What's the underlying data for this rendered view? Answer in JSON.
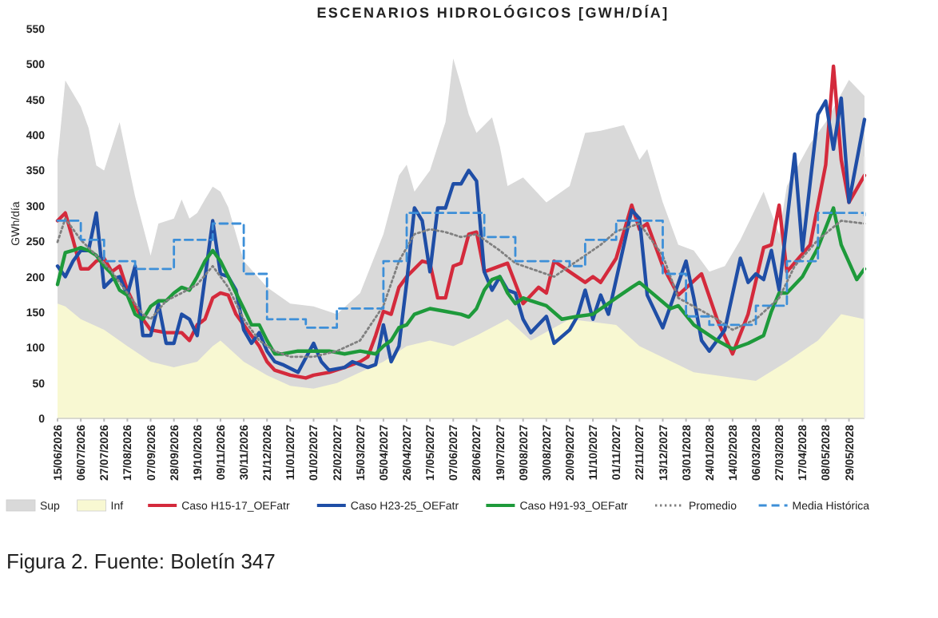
{
  "chart_data": {
    "type": "line",
    "title": "ESCENARIOS HIDROLÓGICOS [GWH/DÍA]",
    "ylabel": "GWh/día",
    "ylim": [
      0,
      550
    ],
    "yticks": [
      0,
      50,
      100,
      150,
      200,
      250,
      300,
      350,
      400,
      450,
      500,
      550
    ],
    "xlim": [
      "2026-06-15",
      "2028-06-12"
    ],
    "xticks": [
      {
        "value": "2026-06-15",
        "label": "15/06/2026"
      },
      {
        "value": "2026-07-06",
        "label": "06/07/2026"
      },
      {
        "value": "2026-07-27",
        "label": "27/07/2026"
      },
      {
        "value": "2026-08-17",
        "label": "17/08/2026"
      },
      {
        "value": "2026-09-07",
        "label": "07/09/2026"
      },
      {
        "value": "2026-09-28",
        "label": "28/09/2026"
      },
      {
        "value": "2026-10-19",
        "label": "19/10/2026"
      },
      {
        "value": "2026-11-09",
        "label": "09/11/2026"
      },
      {
        "value": "2026-11-30",
        "label": "30/11/2026"
      },
      {
        "value": "2026-12-21",
        "label": "21/12/2026"
      },
      {
        "value": "2027-01-11",
        "label": "11/01/2027"
      },
      {
        "value": "2027-02-01",
        "label": "01/02/2027"
      },
      {
        "value": "2027-02-22",
        "label": "22/02/2027"
      },
      {
        "value": "2027-03-15",
        "label": "15/03/2027"
      },
      {
        "value": "2027-04-05",
        "label": "05/04/2027"
      },
      {
        "value": "2027-04-26",
        "label": "26/04/2027"
      },
      {
        "value": "2027-05-17",
        "label": "17/05/2027"
      },
      {
        "value": "2027-06-07",
        "label": "07/06/2027"
      },
      {
        "value": "2027-06-28",
        "label": "28/06/2027"
      },
      {
        "value": "2027-07-19",
        "label": "19/07/2027"
      },
      {
        "value": "2027-08-09",
        "label": "09/08/2027"
      },
      {
        "value": "2027-08-30",
        "label": "30/08/2027"
      },
      {
        "value": "2027-09-20",
        "label": "20/09/2027"
      },
      {
        "value": "2027-10-11",
        "label": "11/10/2027"
      },
      {
        "value": "2027-11-01",
        "label": "01/11/2027"
      },
      {
        "value": "2027-11-22",
        "label": "22/11/2027"
      },
      {
        "value": "2027-12-13",
        "label": "13/12/2027"
      },
      {
        "value": "2028-01-03",
        "label": "03/01/2028"
      },
      {
        "value": "2028-01-24",
        "label": "24/01/2028"
      },
      {
        "value": "2028-02-14",
        "label": "14/02/2028"
      },
      {
        "value": "2028-03-06",
        "label": "06/03/2028"
      },
      {
        "value": "2028-03-27",
        "label": "27/03/2028"
      },
      {
        "value": "2028-04-17",
        "label": "17/04/2028"
      },
      {
        "value": "2028-05-08",
        "label": "08/05/2028"
      },
      {
        "value": "2028-05-29",
        "label": "29/05/2028"
      }
    ],
    "legend": "bottom",
    "grid": false,
    "annotations": [
      "Figura 2. Fuente: Boletín 347"
    ],
    "series": [
      {
        "name": "Sup",
        "type": "area",
        "color": "#d9d9d9",
        "x": [
          "2026-06-15",
          "2026-06-22",
          "2026-07-06",
          "2026-07-13",
          "2026-07-20",
          "2026-07-27",
          "2026-08-10",
          "2026-08-17",
          "2026-08-24",
          "2026-09-07",
          "2026-09-14",
          "2026-09-28",
          "2026-10-05",
          "2026-10-12",
          "2026-10-19",
          "2026-10-26",
          "2026-11-02",
          "2026-11-09",
          "2026-11-16",
          "2026-11-30",
          "2026-12-21",
          "2027-01-11",
          "2027-02-01",
          "2027-02-22",
          "2027-03-15",
          "2027-04-05",
          "2027-04-19",
          "2027-04-26",
          "2027-05-03",
          "2027-05-17",
          "2027-05-31",
          "2027-06-07",
          "2027-06-14",
          "2027-06-21",
          "2027-06-28",
          "2027-07-12",
          "2027-07-19",
          "2027-07-26",
          "2027-08-09",
          "2027-08-30",
          "2027-09-20",
          "2027-10-04",
          "2027-10-18",
          "2027-11-08",
          "2027-11-22",
          "2027-11-29",
          "2027-12-13",
          "2027-12-27",
          "2028-01-10",
          "2028-01-24",
          "2028-02-07",
          "2028-02-21",
          "2028-03-13",
          "2028-03-27",
          "2028-04-03",
          "2028-04-24",
          "2028-05-08",
          "2028-05-29",
          "2028-06-12"
        ],
        "values": [
          365,
          477,
          440,
          410,
          357,
          350,
          418,
          365,
          313,
          230,
          275,
          282,
          309,
          282,
          290,
          309,
          327,
          320,
          298,
          222,
          185,
          162,
          158,
          147,
          177,
          260,
          343,
          358,
          320,
          350,
          418,
          508,
          470,
          429,
          403,
          425,
          384,
          328,
          340,
          305,
          328,
          403,
          406,
          414,
          365,
          380,
          305,
          245,
          237,
          207,
          215,
          252,
          320,
          260,
          328,
          388,
          418,
          478,
          455
        ]
      },
      {
        "name": "Inf",
        "type": "area",
        "color": "#f8f8d2",
        "x": [
          "2026-06-15",
          "2026-06-22",
          "2026-07-06",
          "2026-07-27",
          "2026-08-17",
          "2026-09-07",
          "2026-09-28",
          "2026-10-19",
          "2026-11-02",
          "2026-11-09",
          "2026-11-30",
          "2026-12-21",
          "2027-01-11",
          "2027-02-01",
          "2027-02-22",
          "2027-03-15",
          "2027-04-05",
          "2027-04-26",
          "2027-05-17",
          "2027-06-07",
          "2027-06-28",
          "2027-07-26",
          "2027-08-16",
          "2027-09-20",
          "2027-11-01",
          "2027-11-22",
          "2028-01-10",
          "2028-03-06",
          "2028-04-03",
          "2028-05-01",
          "2028-05-22",
          "2028-06-12"
        ],
        "values": [
          162,
          158,
          140,
          125,
          102,
          80,
          72,
          80,
          102,
          110,
          80,
          61,
          46,
          42,
          50,
          65,
          80,
          102,
          110,
          102,
          117,
          140,
          110,
          140,
          132,
          102,
          65,
          53,
          80,
          110,
          147,
          140
        ]
      },
      {
        "name": "Caso H15-17_OEFatr",
        "color": "#d42a3c",
        "x": [
          "2026-06-15",
          "2026-06-22",
          "2026-06-29",
          "2026-07-06",
          "2026-07-13",
          "2026-07-20",
          "2026-07-27",
          "2026-08-03",
          "2026-08-10",
          "2026-08-17",
          "2026-08-24",
          "2026-08-31",
          "2026-09-07",
          "2026-09-21",
          "2026-10-05",
          "2026-10-12",
          "2026-10-19",
          "2026-10-26",
          "2026-11-02",
          "2026-11-09",
          "2026-11-16",
          "2026-11-23",
          "2026-11-30",
          "2026-12-07",
          "2026-12-14",
          "2026-12-21",
          "2026-12-28",
          "2027-01-11",
          "2027-01-25",
          "2027-02-01",
          "2027-02-15",
          "2027-03-01",
          "2027-03-15",
          "2027-03-22",
          "2027-03-29",
          "2027-04-05",
          "2027-04-12",
          "2027-04-19",
          "2027-04-26",
          "2027-05-03",
          "2027-05-10",
          "2027-05-17",
          "2027-05-24",
          "2027-05-31",
          "2027-06-07",
          "2027-06-14",
          "2027-06-21",
          "2027-06-28",
          "2027-07-05",
          "2027-07-26",
          "2027-08-09",
          "2027-08-23",
          "2027-08-30",
          "2027-09-06",
          "2027-09-20",
          "2027-10-04",
          "2027-10-11",
          "2027-10-18",
          "2027-11-01",
          "2027-11-15",
          "2027-11-22",
          "2027-11-29",
          "2027-12-13",
          "2027-12-27",
          "2028-01-17",
          "2028-01-31",
          "2028-02-14",
          "2028-02-28",
          "2028-03-13",
          "2028-03-20",
          "2028-03-27",
          "2028-04-03",
          "2028-04-24",
          "2028-05-08",
          "2028-05-15",
          "2028-05-22",
          "2028-05-29",
          "2028-06-12"
        ],
        "values": [
          279,
          290,
          252,
          211,
          211,
          222,
          226,
          207,
          215,
          181,
          158,
          140,
          125,
          121,
          121,
          110,
          132,
          140,
          170,
          177,
          174,
          147,
          132,
          117,
          102,
          80,
          68,
          61,
          57,
          61,
          65,
          72,
          80,
          87,
          117,
          151,
          147,
          185,
          200,
          211,
          222,
          219,
          170,
          170,
          215,
          219,
          260,
          263,
          207,
          219,
          162,
          185,
          177,
          222,
          207,
          192,
          200,
          192,
          226,
          301,
          267,
          275,
          215,
          174,
          204,
          140,
          91,
          147,
          241,
          245,
          301,
          207,
          245,
          358,
          497,
          365,
          305,
          343
        ]
      },
      {
        "name": "Caso H23-25_OEFatr",
        "color": "#1f4ea6",
        "x": [
          "2026-06-15",
          "2026-06-22",
          "2026-06-29",
          "2026-07-06",
          "2026-07-13",
          "2026-07-20",
          "2026-07-27",
          "2026-08-03",
          "2026-08-10",
          "2026-08-17",
          "2026-08-24",
          "2026-08-31",
          "2026-09-07",
          "2026-09-14",
          "2026-09-21",
          "2026-09-28",
          "2026-10-05",
          "2026-10-12",
          "2026-10-19",
          "2026-11-02",
          "2026-11-09",
          "2026-11-16",
          "2026-11-23",
          "2026-11-30",
          "2026-12-07",
          "2026-12-14",
          "2026-12-21",
          "2026-12-28",
          "2027-01-04",
          "2027-01-18",
          "2027-02-01",
          "2027-02-08",
          "2027-02-15",
          "2027-03-01",
          "2027-03-08",
          "2027-03-22",
          "2027-03-29",
          "2027-04-05",
          "2027-04-12",
          "2027-04-19",
          "2027-04-26",
          "2027-05-03",
          "2027-05-10",
          "2027-05-17",
          "2027-05-24",
          "2027-05-31",
          "2027-06-07",
          "2027-06-14",
          "2027-06-21",
          "2027-06-28",
          "2027-07-05",
          "2027-07-12",
          "2027-07-19",
          "2027-07-26",
          "2027-08-02",
          "2027-08-09",
          "2027-08-16",
          "2027-08-30",
          "2027-09-06",
          "2027-09-20",
          "2027-09-27",
          "2027-10-04",
          "2027-10-11",
          "2027-10-18",
          "2027-10-25",
          "2027-11-15",
          "2027-11-22",
          "2027-11-29",
          "2027-12-13",
          "2027-12-20",
          "2028-01-03",
          "2028-01-10",
          "2028-01-17",
          "2028-01-24",
          "2028-02-07",
          "2028-02-21",
          "2028-02-28",
          "2028-03-06",
          "2028-03-13",
          "2028-03-20",
          "2028-03-27",
          "2028-04-10",
          "2028-04-17",
          "2028-05-01",
          "2028-05-08",
          "2028-05-15",
          "2028-05-22",
          "2028-05-29",
          "2028-06-12"
        ],
        "values": [
          215,
          200,
          222,
          237,
          237,
          290,
          185,
          196,
          200,
          174,
          215,
          117,
          117,
          162,
          106,
          106,
          147,
          140,
          117,
          279,
          204,
          200,
          181,
          125,
          106,
          121,
          95,
          80,
          76,
          65,
          106,
          80,
          68,
          72,
          80,
          72,
          76,
          132,
          80,
          102,
          192,
          297,
          279,
          207,
          297,
          297,
          331,
          331,
          350,
          335,
          207,
          181,
          200,
          181,
          177,
          140,
          121,
          144,
          106,
          125,
          144,
          181,
          140,
          174,
          147,
          294,
          282,
          174,
          128,
          159,
          222,
          170,
          110,
          95,
          125,
          226,
          192,
          204,
          196,
          237,
          181,
          373,
          237,
          429,
          448,
          380,
          452,
          305,
          422
        ]
      },
      {
        "name": "Caso H91-93_OEFatr",
        "color": "#1e9a3b",
        "x": [
          "2026-06-15",
          "2026-06-22",
          "2026-06-29",
          "2026-07-06",
          "2026-07-13",
          "2026-07-20",
          "2026-07-27",
          "2026-08-03",
          "2026-08-10",
          "2026-08-17",
          "2026-08-24",
          "2026-08-31",
          "2026-09-07",
          "2026-09-14",
          "2026-09-21",
          "2026-09-28",
          "2026-10-05",
          "2026-10-12",
          "2026-10-19",
          "2026-10-26",
          "2026-11-02",
          "2026-11-09",
          "2026-11-16",
          "2026-11-23",
          "2026-11-30",
          "2026-12-07",
          "2026-12-14",
          "2026-12-21",
          "2026-12-28",
          "2027-01-04",
          "2027-01-18",
          "2027-02-01",
          "2027-02-15",
          "2027-03-01",
          "2027-03-15",
          "2027-03-29",
          "2027-04-05",
          "2027-04-12",
          "2027-04-19",
          "2027-04-26",
          "2027-05-03",
          "2027-05-17",
          "2027-05-31",
          "2027-06-14",
          "2027-06-21",
          "2027-06-28",
          "2027-07-05",
          "2027-07-12",
          "2027-07-19",
          "2027-07-26",
          "2027-08-02",
          "2027-08-09",
          "2027-08-16",
          "2027-08-30",
          "2027-09-13",
          "2027-09-27",
          "2027-10-11",
          "2027-11-01",
          "2027-11-15",
          "2027-11-22",
          "2027-12-20",
          "2027-12-27",
          "2028-01-10",
          "2028-01-31",
          "2028-02-14",
          "2028-02-28",
          "2028-03-13",
          "2028-03-20",
          "2028-03-27",
          "2028-04-03",
          "2028-04-17",
          "2028-05-01",
          "2028-05-15",
          "2028-05-22",
          "2028-06-05",
          "2028-06-12"
        ],
        "values": [
          189,
          234,
          237,
          241,
          237,
          230,
          215,
          204,
          181,
          174,
          147,
          140,
          158,
          166,
          166,
          177,
          185,
          181,
          200,
          222,
          237,
          222,
          200,
          177,
          155,
          132,
          132,
          110,
          91,
          91,
          95,
          95,
          95,
          91,
          95,
          91,
          102,
          110,
          128,
          132,
          147,
          155,
          151,
          147,
          143,
          155,
          181,
          196,
          200,
          177,
          162,
          170,
          166,
          159,
          140,
          144,
          147,
          170,
          185,
          192,
          155,
          159,
          132,
          110,
          98,
          106,
          117,
          151,
          177,
          177,
          200,
          241,
          297,
          245,
          196,
          211
        ]
      },
      {
        "name": "Promedio",
        "color": "#808080",
        "line_style": "dotted",
        "x": [
          "2026-06-15",
          "2026-06-22",
          "2026-07-06",
          "2026-07-20",
          "2026-08-03",
          "2026-08-17",
          "2026-08-31",
          "2026-09-07",
          "2026-09-21",
          "2026-10-05",
          "2026-10-19",
          "2026-11-02",
          "2026-11-16",
          "2026-11-30",
          "2026-12-14",
          "2026-12-28",
          "2027-01-11",
          "2027-02-01",
          "2027-02-22",
          "2027-03-15",
          "2027-04-05",
          "2027-04-19",
          "2027-05-03",
          "2027-05-17",
          "2027-05-31",
          "2027-06-14",
          "2027-06-28",
          "2027-07-19",
          "2027-08-02",
          "2027-09-06",
          "2027-09-20",
          "2027-10-18",
          "2027-11-01",
          "2027-11-22",
          "2027-12-13",
          "2027-12-27",
          "2028-01-31",
          "2028-02-14",
          "2028-03-06",
          "2028-03-27",
          "2028-04-10",
          "2028-05-01",
          "2028-05-22",
          "2028-06-12"
        ],
        "values": [
          249,
          282,
          252,
          230,
          207,
          177,
          147,
          140,
          166,
          177,
          189,
          215,
          185,
          140,
          110,
          95,
          87,
          87,
          95,
          110,
          159,
          222,
          260,
          267,
          263,
          256,
          260,
          237,
          219,
          200,
          215,
          245,
          264,
          275,
          230,
          170,
          140,
          125,
          140,
          170,
          215,
          252,
          279,
          275
        ]
      },
      {
        "name": "Media Histórica",
        "type": "step",
        "color": "#3d8fd8",
        "line_style": "dashed",
        "x": [
          "2026-06-15",
          "2026-07-06",
          "2026-07-27",
          "2026-08-24",
          "2026-09-28",
          "2026-11-02",
          "2026-11-30",
          "2026-12-21",
          "2027-01-25",
          "2027-02-22",
          "2027-04-05",
          "2027-04-26",
          "2027-07-05",
          "2027-08-02",
          "2027-09-20",
          "2027-10-04",
          "2027-11-01",
          "2027-12-13",
          "2028-01-03",
          "2028-01-24",
          "2028-03-06",
          "2028-04-03",
          "2028-05-01",
          "2028-06-12"
        ],
        "values": [
          279,
          252,
          222,
          211,
          252,
          275,
          204,
          140,
          128,
          155,
          222,
          290,
          256,
          222,
          215,
          252,
          279,
          204,
          144,
          132,
          159,
          222,
          290,
          286
        ]
      }
    ]
  }
}
